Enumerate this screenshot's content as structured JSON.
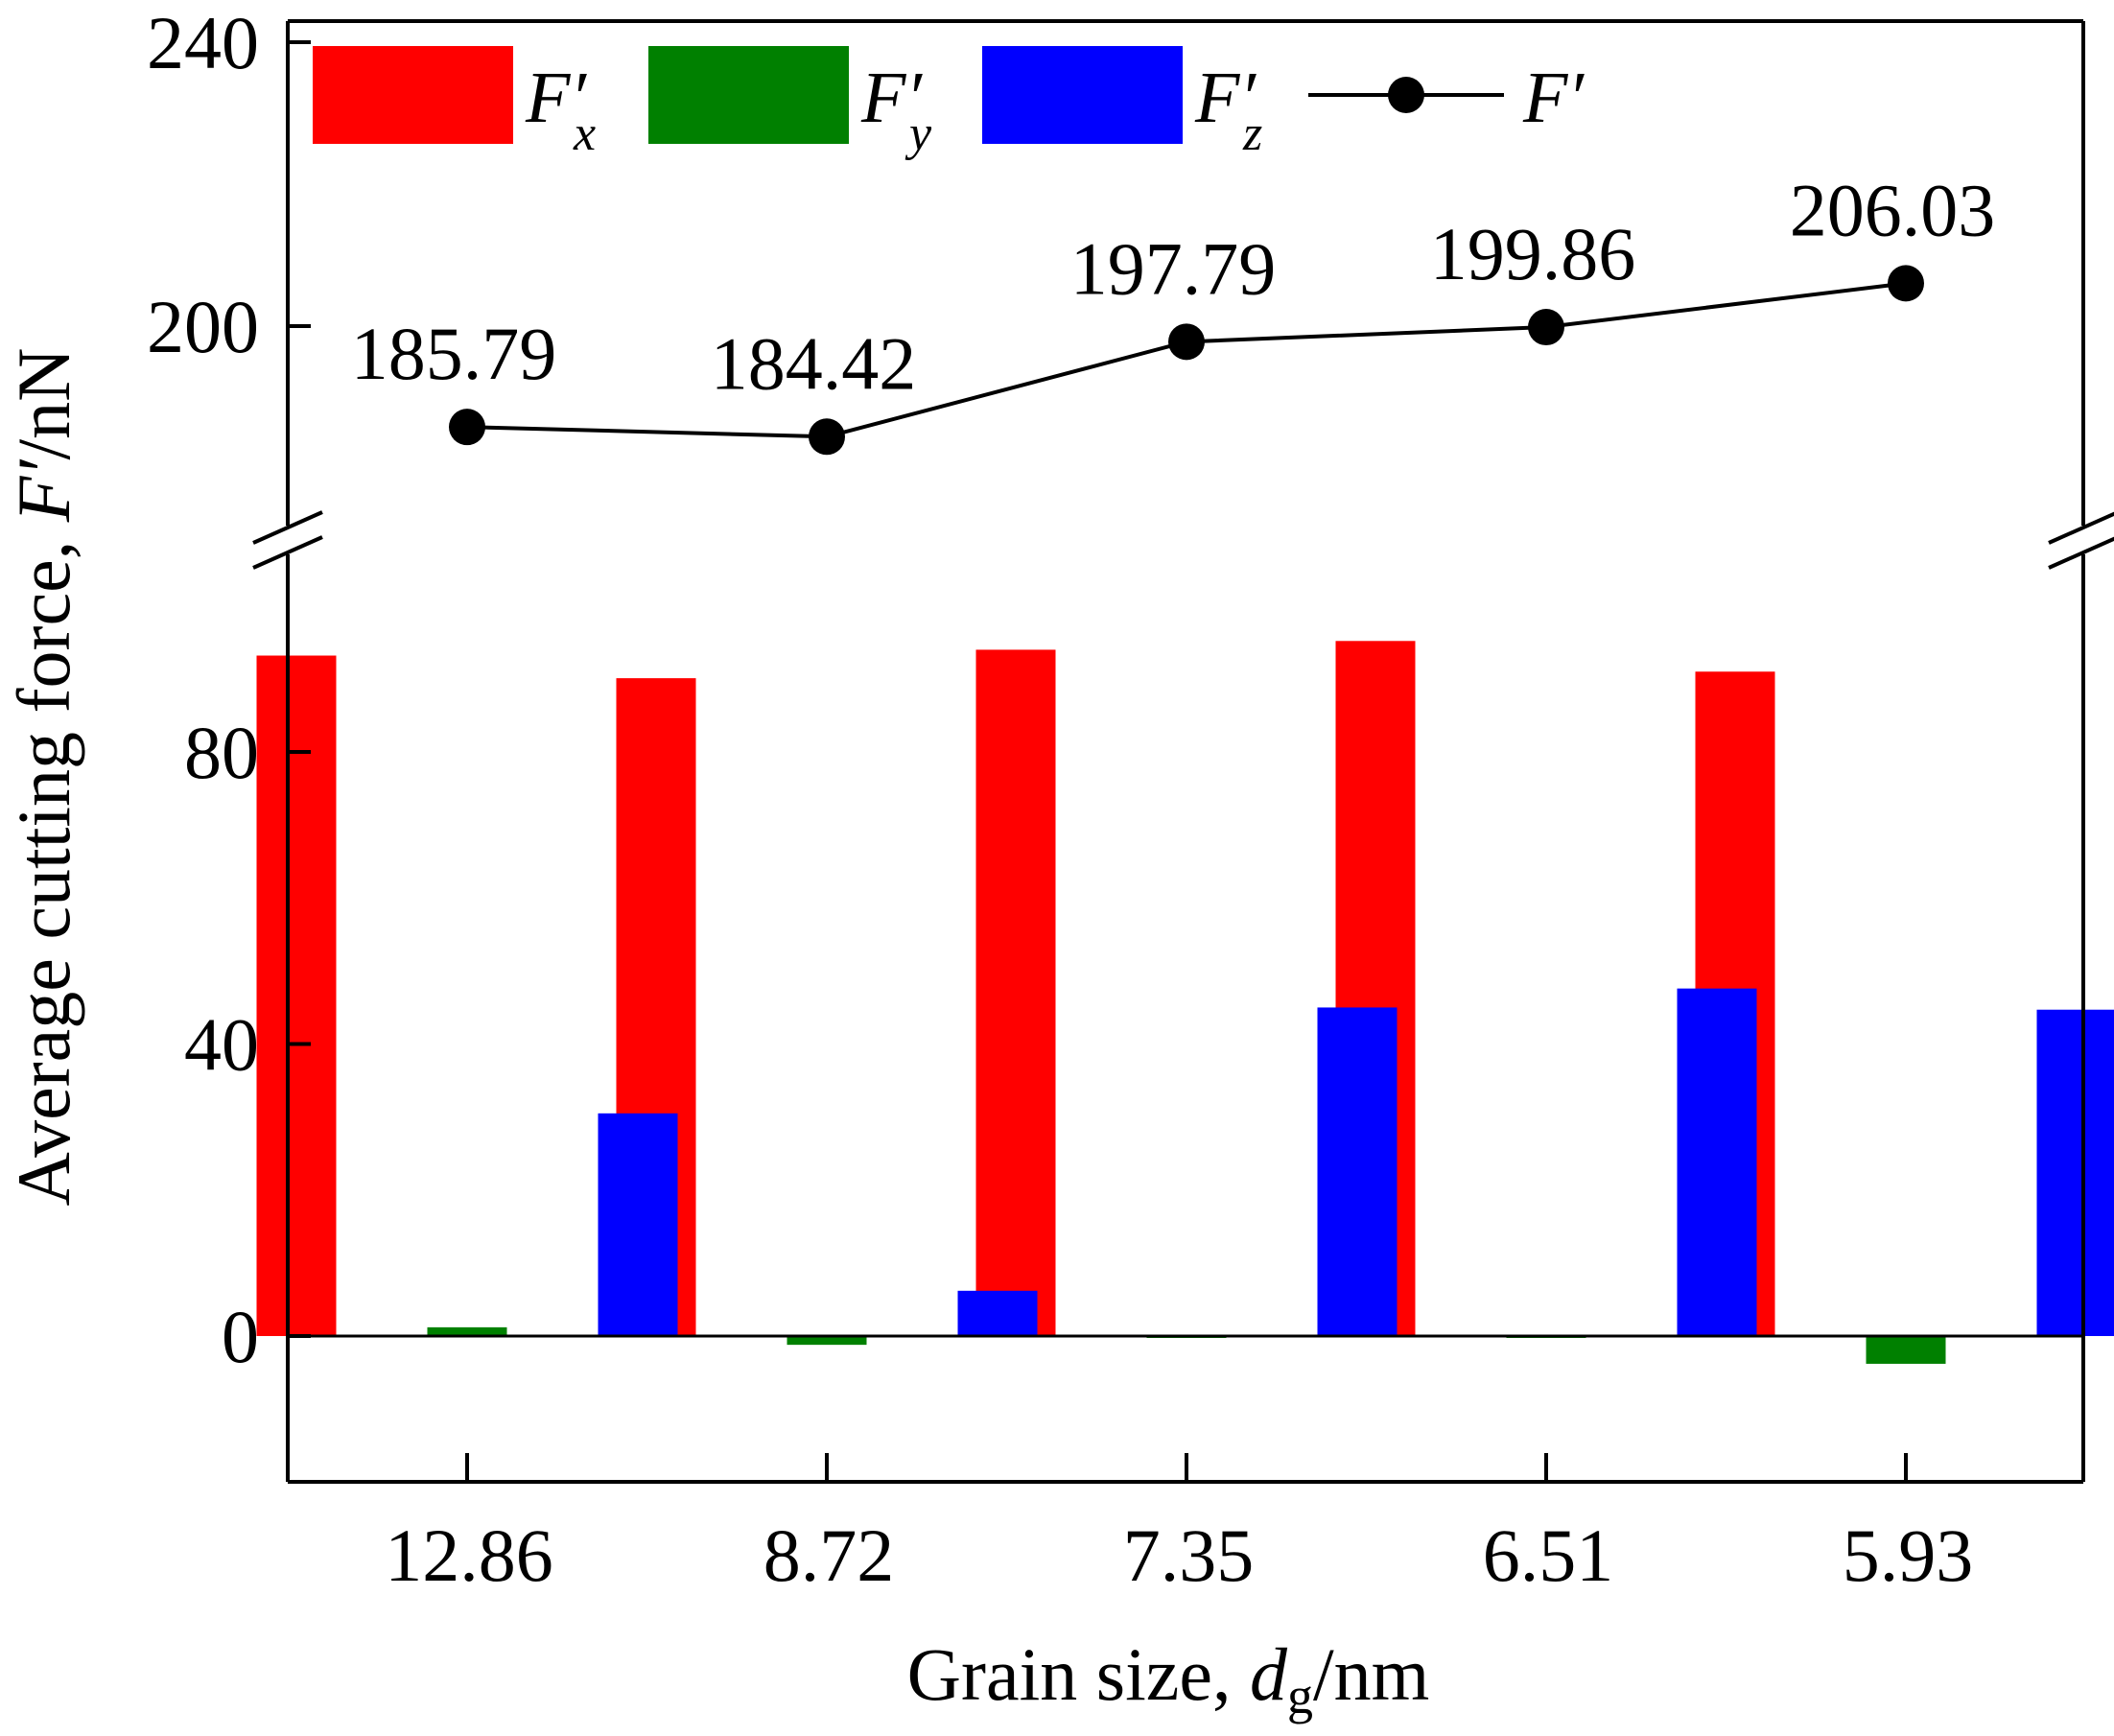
{
  "chart_data": {
    "type": "bar",
    "categories": [
      "12.86",
      "8.72",
      "7.35",
      "6.51",
      "5.93"
    ],
    "xlabel": {
      "prefix": "Grain size, ",
      "symbol": "d",
      "subscript": "g",
      "suffix": "/nm"
    },
    "ylabel": {
      "prefix": "Average cutting force, ",
      "symbol": "F′",
      "suffix": "/nN"
    },
    "lower_axis": {
      "ylim": [
        -20,
        110
      ],
      "ticks": [
        0,
        40,
        80
      ]
    },
    "upper_axis": {
      "ylim": [
        170,
        240
      ],
      "ticks": [
        200,
        240
      ]
    },
    "axis_break": true,
    "series": [
      {
        "name": "F′",
        "subscript": "x",
        "type": "bar",
        "color": "#ff0000",
        "values": [
          93.2,
          90.1,
          94.0,
          95.2,
          91.0
        ]
      },
      {
        "name": "F′",
        "subscript": "y",
        "type": "bar",
        "color": "#008000",
        "values": [
          1.2,
          -1.2,
          0.0,
          0.0,
          -3.8
        ]
      },
      {
        "name": "F′",
        "subscript": "z",
        "type": "bar",
        "color": "#0000ff",
        "values": [
          30.5,
          6.2,
          45.0,
          47.6,
          44.7
        ]
      },
      {
        "name": "F′",
        "subscript": "",
        "type": "line",
        "color": "#000000",
        "values": [
          185.79,
          184.42,
          197.79,
          199.86,
          206.03
        ],
        "labels": [
          "185.79",
          "184.42",
          "197.79",
          "199.86",
          "206.03"
        ]
      }
    ]
  }
}
